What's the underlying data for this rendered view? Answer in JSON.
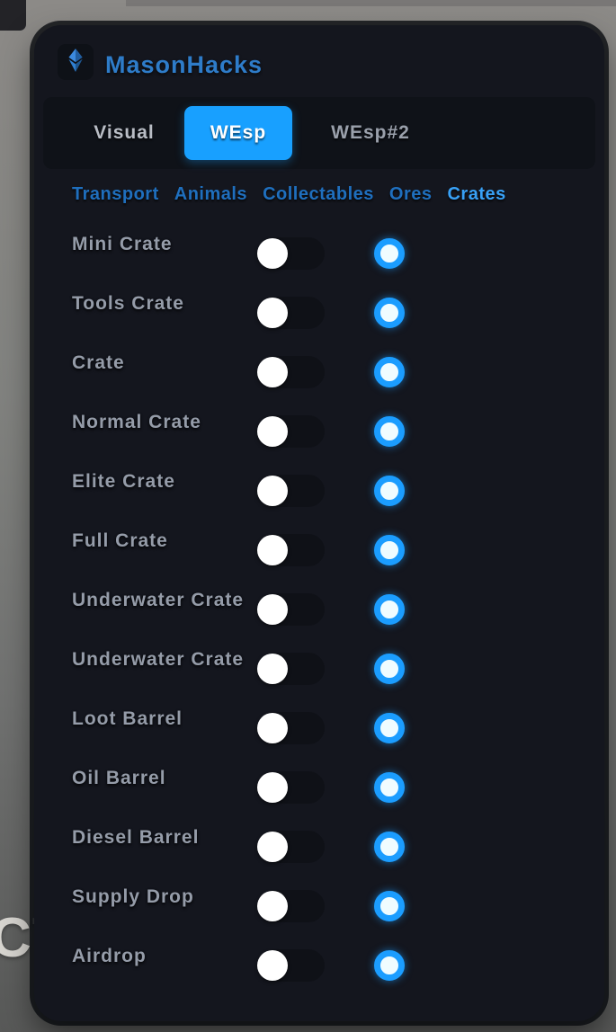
{
  "app": {
    "title": "MasonHacks",
    "logo_icon": "gem-icon"
  },
  "tabs": [
    {
      "label": "Visual",
      "active": false
    },
    {
      "label": "WEsp",
      "active": true
    },
    {
      "label": "WEsp#2",
      "active": false
    }
  ],
  "subtabs": [
    {
      "label": "Transport",
      "active": false
    },
    {
      "label": "Animals",
      "active": false
    },
    {
      "label": "Collectables",
      "active": false
    },
    {
      "label": "Ores",
      "active": false
    },
    {
      "label": "Crates",
      "active": true
    }
  ],
  "rows": [
    {
      "label": "Mini Crate",
      "toggle": "off"
    },
    {
      "label": "Tools Crate",
      "toggle": "off"
    },
    {
      "label": "Crate",
      "toggle": "off"
    },
    {
      "label": "Normal Crate",
      "toggle": "off"
    },
    {
      "label": "Elite Crate",
      "toggle": "off"
    },
    {
      "label": "Full Crate",
      "toggle": "off"
    },
    {
      "label": "Underwater Crate",
      "toggle": "off"
    },
    {
      "label": "Underwater Crate",
      "toggle": "off"
    },
    {
      "label": "Loot Barrel",
      "toggle": "off"
    },
    {
      "label": "Oil Barrel",
      "toggle": "off"
    },
    {
      "label": "Diesel Barrel",
      "toggle": "off"
    },
    {
      "label": "Supply Drop",
      "toggle": "off"
    },
    {
      "label": "Airdrop",
      "toggle": "off"
    }
  ],
  "background": {
    "clipped_text": "CT"
  },
  "colors": {
    "accent_blue": "#18a0ff",
    "radio_ring": "#1b9dff",
    "radio_center": "#f0fcff",
    "panel_bg": "#14161e",
    "tabbar_bg": "#0f1218",
    "toggle_track": "#0f1117",
    "row_label": "#959ca9",
    "subtab_inactive": "#1f6fbe",
    "subtab_active": "#38a1f6",
    "title_text": "#2e7cc9"
  }
}
